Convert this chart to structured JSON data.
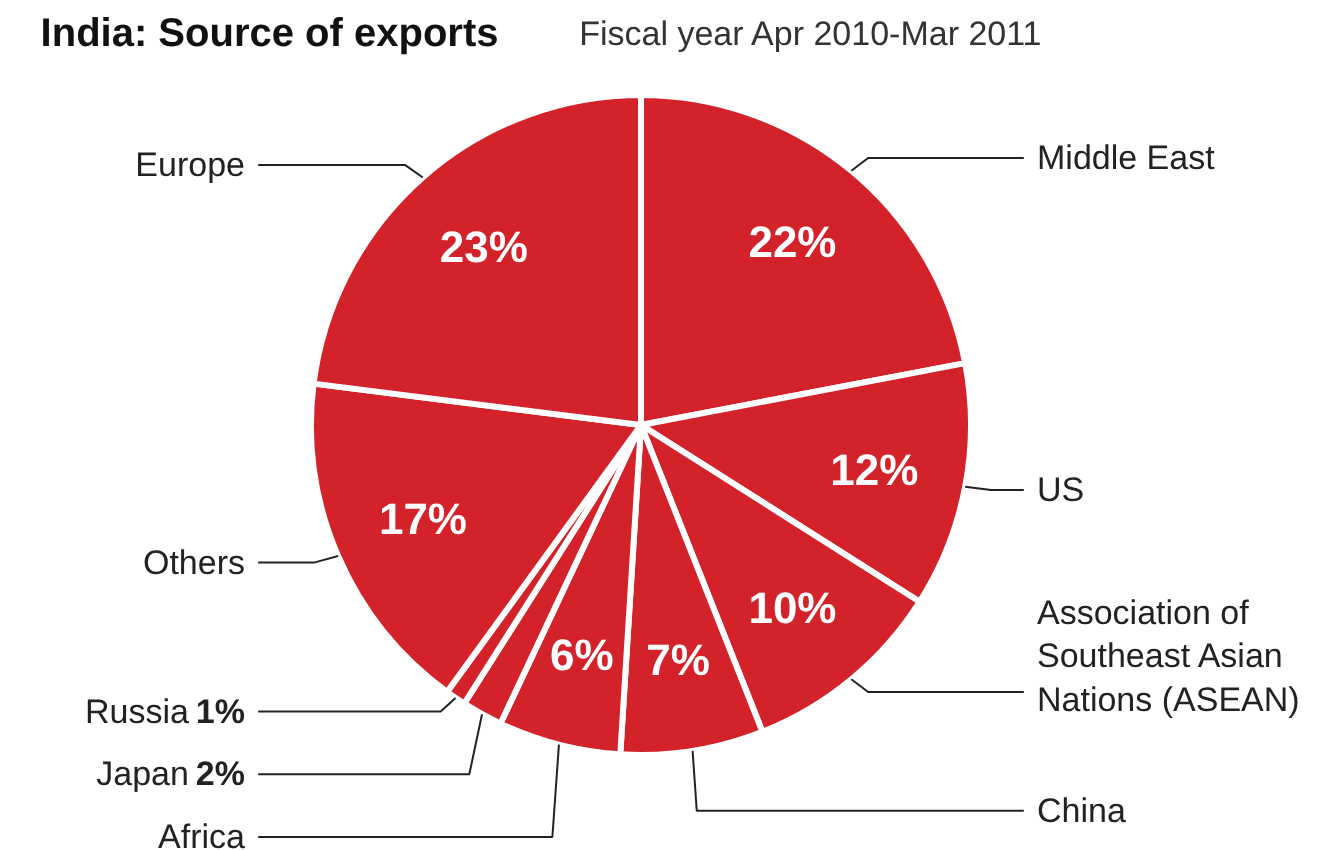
{
  "chart_data": {
    "type": "pie",
    "title": "India: Source of exports",
    "subtitle": "Fiscal year Apr 2010-Mar 2011",
    "categories": [
      "Middle East",
      "US",
      "Association of\nSoutheast Asian\nNations (ASEAN)",
      "China",
      "Africa",
      "Japan",
      "Russia",
      "Others",
      "Europe"
    ],
    "values": [
      22,
      12,
      10,
      7,
      6,
      2,
      1,
      17,
      23
    ],
    "value_labels": [
      "22%",
      "12%",
      "10%",
      "7%",
      "6%",
      "2%",
      "1%",
      "17%",
      "23%"
    ],
    "colors": [
      "#d3222a",
      "#d3222a",
      "#d3222a",
      "#d3222a",
      "#d3222a",
      "#d3222a",
      "#d3222a",
      "#d3222a",
      "#d3222a"
    ]
  }
}
